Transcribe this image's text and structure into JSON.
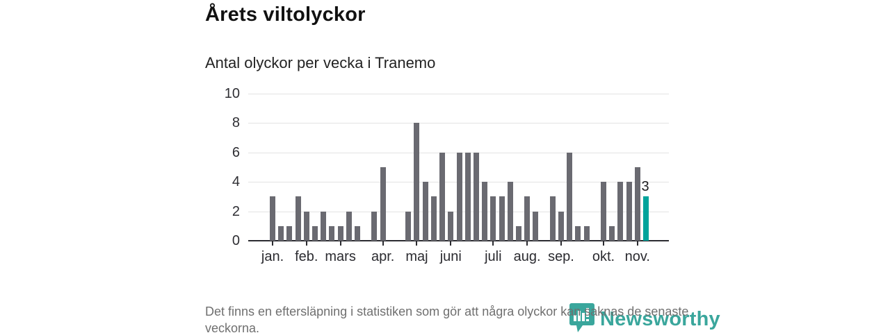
{
  "header": {
    "title": "Årets viltolyckor",
    "subtitle": "Antal olyckor per vecka i Tranemo"
  },
  "footnote": "Det finns en eftersläpning i statistiken som gör att några olyckor kan saknas de senaste veckorna.",
  "logo": {
    "text": "Newsworthy",
    "icon": "newsworthy-marker-barchart-icon",
    "color": "#3aa69c"
  },
  "colors": {
    "bar": "#6a6a71",
    "highlight": "#00a39b",
    "gridline": "#e3e3e3",
    "axis": "#2b2b30"
  },
  "chart_data": {
    "type": "bar",
    "title": "Årets viltolyckor",
    "subtitle": "Antal olyckor per vecka i Tranemo",
    "x_unit": "week",
    "weeks": [
      1,
      2,
      3,
      4,
      5,
      6,
      7,
      8,
      9,
      10,
      11,
      12,
      13,
      14,
      15,
      16,
      17,
      18,
      19,
      20,
      21,
      22,
      23,
      24,
      25,
      26,
      27,
      28,
      29,
      30,
      31,
      32,
      33,
      34,
      35,
      36,
      37,
      38,
      39,
      40,
      41,
      42,
      43,
      44,
      45
    ],
    "values": [
      3,
      1,
      1,
      3,
      2,
      1,
      2,
      1,
      1,
      2,
      1,
      0,
      2,
      5,
      0,
      0,
      2,
      8,
      4,
      3,
      6,
      2,
      6,
      6,
      6,
      4,
      3,
      3,
      4,
      1,
      3,
      2,
      0,
      3,
      2,
      6,
      1,
      1,
      0,
      4,
      1,
      4,
      4,
      5,
      3
    ],
    "ylim": [
      0,
      10
    ],
    "yticks": [
      0,
      2,
      4,
      6,
      8,
      10
    ],
    "grid": true,
    "legend": false,
    "months": [
      {
        "label": "jan.",
        "week": 1
      },
      {
        "label": "feb.",
        "week": 5
      },
      {
        "label": "mars",
        "week": 9
      },
      {
        "label": "apr.",
        "week": 14
      },
      {
        "label": "maj",
        "week": 18
      },
      {
        "label": "juni",
        "week": 22
      },
      {
        "label": "juli",
        "week": 27
      },
      {
        "label": "aug.",
        "week": 31
      },
      {
        "label": "sep.",
        "week": 35
      },
      {
        "label": "okt.",
        "week": 40
      },
      {
        "label": "nov.",
        "week": 44
      }
    ],
    "highlight": {
      "week": 45,
      "value": 3,
      "label": "3"
    }
  }
}
